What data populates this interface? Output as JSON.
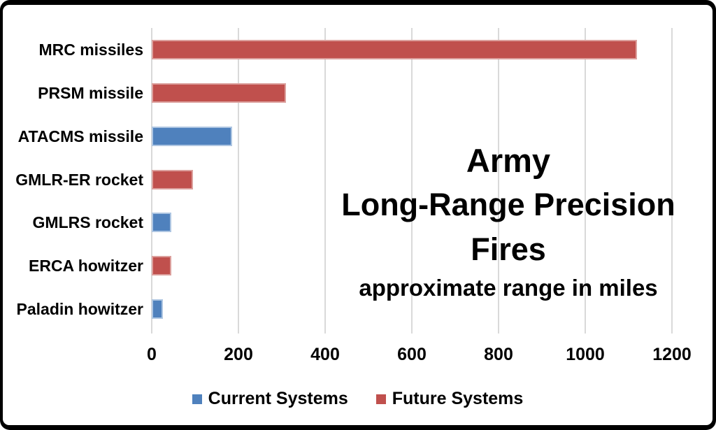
{
  "frame": {
    "border_color": "#000000",
    "background": "#ffffff",
    "gridline_color": "#d9d9d9"
  },
  "chart_data": {
    "type": "bar",
    "orientation": "horizontal",
    "title": "Army",
    "subtitle": "Long-Range Precision Fires",
    "caption": "approximate range in miles",
    "unit": "miles",
    "xlim": [
      0,
      1200
    ],
    "xticks": [
      0,
      200,
      400,
      600,
      800,
      1000,
      1200
    ],
    "grid": "vertical light-gray gridlines, no axis line",
    "legend_position": "bottom-center",
    "series": [
      {
        "name": "Current Systems",
        "color": "#4F81BD",
        "edge_color": "#AEC6E2"
      },
      {
        "name": "Future Systems",
        "color": "#C0504D",
        "edge_color": "#DCA09D"
      }
    ],
    "bars": [
      {
        "category": "MRC missiles",
        "value": 1120,
        "series": "Future Systems"
      },
      {
        "category": "PRSM missile",
        "value": 310,
        "series": "Future Systems"
      },
      {
        "category": "ATACMS missile",
        "value": 185,
        "series": "Current Systems"
      },
      {
        "category": "GMLR-ER rocket",
        "value": 95,
        "series": "Future Systems"
      },
      {
        "category": "GMLRS rocket",
        "value": 45,
        "series": "Current Systems"
      },
      {
        "category": "ERCA howitzer",
        "value": 45,
        "series": "Future Systems"
      },
      {
        "category": "Paladin howitzer",
        "value": 25,
        "series": "Current Systems"
      }
    ]
  },
  "legend": {
    "items": [
      {
        "label": "Current Systems",
        "color": "#4F81BD"
      },
      {
        "label": "Future Systems",
        "color": "#C0504D"
      }
    ]
  }
}
